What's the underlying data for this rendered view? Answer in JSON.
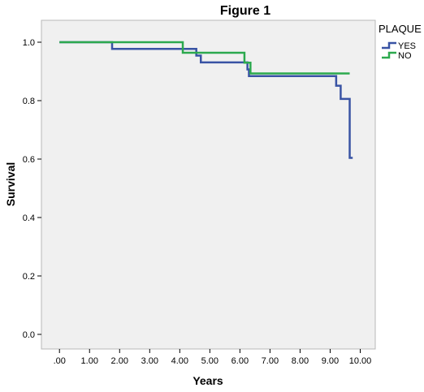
{
  "chart_data": {
    "type": "line",
    "title": "Figure 1",
    "xlabel": "Years",
    "ylabel": "Survival",
    "xlim": [
      -0.6,
      10.5
    ],
    "ylim": [
      -0.05,
      1.075
    ],
    "x_ticks": [
      {
        "value": 0,
        "label": ".00"
      },
      {
        "value": 1,
        "label": "1.00"
      },
      {
        "value": 2,
        "label": "2.00"
      },
      {
        "value": 3,
        "label": "3.00"
      },
      {
        "value": 4,
        "label": "4.00"
      },
      {
        "value": 5,
        "label": "5.00"
      },
      {
        "value": 6,
        "label": "6.00"
      },
      {
        "value": 7,
        "label": "7.00"
      },
      {
        "value": 8,
        "label": "8.00"
      },
      {
        "value": 9,
        "label": "9.00"
      },
      {
        "value": 10,
        "label": "10.00"
      }
    ],
    "y_ticks": [
      {
        "value": 0.0,
        "label": "0.0"
      },
      {
        "value": 0.2,
        "label": "0.2"
      },
      {
        "value": 0.4,
        "label": "0.4"
      },
      {
        "value": 0.6,
        "label": "0.6"
      },
      {
        "value": 0.8,
        "label": "0.8"
      },
      {
        "value": 1.0,
        "label": "1.0"
      }
    ],
    "grid": false,
    "legend": {
      "title": "PLAQUE",
      "position": "top-right"
    },
    "step": true,
    "series": [
      {
        "name": "YES",
        "color": "#3953a4",
        "points": [
          [
            0,
            1.0
          ],
          [
            1.75,
            0.977
          ],
          [
            4.55,
            0.954
          ],
          [
            4.7,
            0.931
          ],
          [
            6.25,
            0.907
          ],
          [
            6.3,
            0.884
          ],
          [
            9.2,
            0.851
          ],
          [
            9.35,
            0.806
          ],
          [
            9.65,
            0.604
          ],
          [
            9.75,
            0.604
          ]
        ]
      },
      {
        "name": "NO",
        "color": "#2ca94e",
        "points": [
          [
            0,
            1.0
          ],
          [
            4.1,
            0.964
          ],
          [
            6.15,
            0.93
          ],
          [
            6.35,
            0.893
          ],
          [
            9.65,
            0.893
          ]
        ]
      }
    ]
  }
}
